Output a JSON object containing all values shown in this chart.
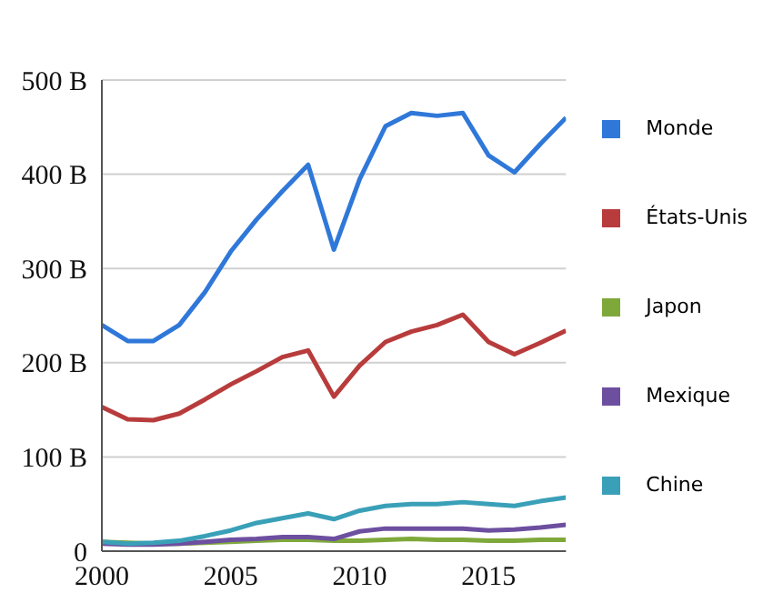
{
  "chart_data": {
    "type": "line",
    "x": [
      2000,
      2001,
      2002,
      2003,
      2004,
      2005,
      2006,
      2007,
      2008,
      2009,
      2010,
      2011,
      2012,
      2013,
      2014,
      2015,
      2016,
      2017,
      2018
    ],
    "series": [
      {
        "name": "Monde",
        "color": "#2f78d9",
        "values": [
          240,
          223,
          223,
          240,
          275,
          318,
          352,
          382,
          410,
          320,
          395,
          451,
          465,
          462,
          465,
          420,
          402,
          432,
          460
        ]
      },
      {
        "name": "États-Unis",
        "color": "#b83c3c",
        "values": [
          153,
          140,
          139,
          146,
          161,
          177,
          191,
          206,
          213,
          164,
          197,
          222,
          233,
          240,
          251,
          222,
          209,
          221,
          234
        ]
      },
      {
        "name": "Japon",
        "color": "#7fa83a",
        "values": [
          10,
          9,
          8,
          8,
          9,
          10,
          11,
          12,
          12,
          11,
          11,
          12,
          13,
          12,
          12,
          11,
          11,
          12,
          12
        ]
      },
      {
        "name": "Mexique",
        "color": "#6d4fa0",
        "values": [
          8,
          7,
          7,
          8,
          10,
          12,
          13,
          15,
          15,
          13,
          21,
          24,
          24,
          24,
          24,
          22,
          23,
          25,
          28
        ]
      },
      {
        "name": "Chine",
        "color": "#3aa0b8",
        "values": [
          10,
          8,
          9,
          11,
          16,
          22,
          30,
          35,
          40,
          34,
          43,
          48,
          50,
          50,
          52,
          50,
          48,
          53,
          57
        ]
      }
    ],
    "xlim": [
      2000,
      2018
    ],
    "xticks": [
      2000,
      2005,
      2010,
      2015
    ],
    "ylim": [
      0,
      500
    ],
    "yticks": [
      0,
      {
        "value": 100,
        "label": "100 B"
      },
      {
        "value": 200,
        "label": "200 B"
      },
      {
        "value": 300,
        "label": "300 B"
      },
      {
        "value": 400,
        "label": "400 B"
      },
      {
        "value": 500,
        "label": "500 B"
      }
    ],
    "grid": "y",
    "legend": "right",
    "marker": "none",
    "line_style": "solid"
  }
}
